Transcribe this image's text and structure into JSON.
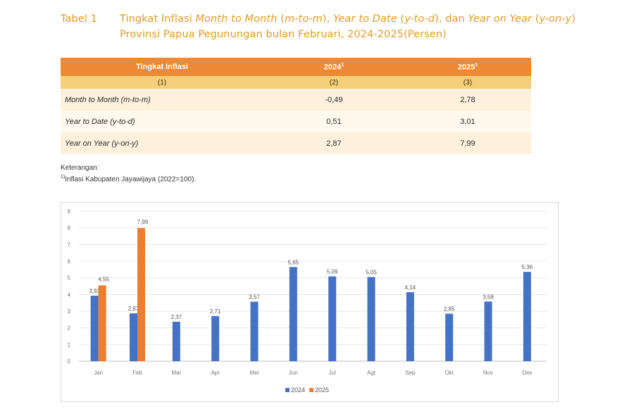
{
  "title": {
    "label": "Tabel 1",
    "text_parts": [
      {
        "t": "Tingkat Inflasi ",
        "i": false
      },
      {
        "t": "Month to Month",
        "i": true
      },
      {
        "t": " (",
        "i": false
      },
      {
        "t": "m-to-m",
        "i": true
      },
      {
        "t": "), ",
        "i": false
      },
      {
        "t": "Year to Date",
        "i": true
      },
      {
        "t": " (",
        "i": false
      },
      {
        "t": "y-to-d",
        "i": true
      },
      {
        "t": "), dan ",
        "i": false
      },
      {
        "t": "Year on Year",
        "i": true
      },
      {
        "t": " (",
        "i": false
      },
      {
        "t": "y-on-y",
        "i": true
      },
      {
        "t": ") Provinsi Papua Pegunungan bulan Februari, 2024-2025(Persen)",
        "i": false
      }
    ]
  },
  "table": {
    "headers": [
      "Tingkat Inflasi",
      "2024",
      "2025"
    ],
    "header_sup": [
      "",
      "1",
      "1"
    ],
    "col_numbers": [
      "(1)",
      "(2)",
      "(3)"
    ],
    "rows": [
      {
        "label": "Month to Month (m-to-m)",
        "v2024": "-0,49",
        "v2025": "2,78"
      },
      {
        "label": "Year to Date (y-to-d)",
        "v2024": "0,51",
        "v2025": "3,01"
      },
      {
        "label": "Year on Year (y-on-y)",
        "v2024": "2,87",
        "v2025": "7,99"
      }
    ]
  },
  "note": {
    "title": "Keterangan:",
    "sup": "1)",
    "text": "Inflasi Kabupaten Jayawijaya (2022=100)."
  },
  "colors": {
    "s2024": "#4472c4",
    "s2025": "#ed7d31",
    "accent": "#ee8a35"
  },
  "chart_data": {
    "type": "bar",
    "categories": [
      "Jan",
      "Feb",
      "Mar",
      "Apr",
      "Mei",
      "Jun",
      "Jul",
      "Agt",
      "Sep",
      "Okt",
      "Nov",
      "Des"
    ],
    "series": [
      {
        "name": "2024",
        "values": [
          3.93,
          2.87,
          2.37,
          2.71,
          3.57,
          5.65,
          5.09,
          5.05,
          4.14,
          2.85,
          3.58,
          5.36
        ],
        "labels": [
          "3,93",
          "2,87",
          "2,37",
          "2,71",
          "3,57",
          "5,65",
          "5,09",
          "5,05",
          "4,14",
          "2,85",
          "3,58",
          "5,36"
        ]
      },
      {
        "name": "2025",
        "values": [
          4.55,
          7.99,
          null,
          null,
          null,
          null,
          null,
          null,
          null,
          null,
          null,
          null
        ],
        "labels": [
          "4,55",
          "7,99",
          "",
          "",
          "",
          "",
          "",
          "",
          "",
          "",
          "",
          ""
        ]
      }
    ],
    "yticks": [
      "0",
      "1",
      "2",
      "3",
      "4",
      "5",
      "6",
      "7",
      "8",
      "9"
    ],
    "ylim": [
      0,
      9
    ],
    "grid": true,
    "legend": "bottom"
  }
}
